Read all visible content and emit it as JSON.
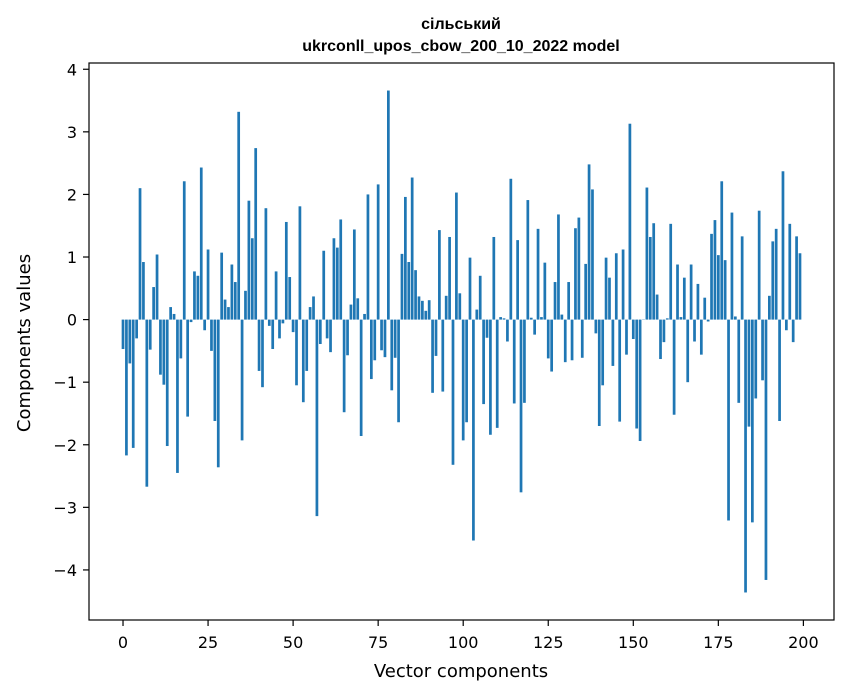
{
  "chart_data": {
    "type": "bar",
    "title": "сільський",
    "subtitle": "ukrconll_upos_cbow_200_10_2022 model",
    "xlabel": "Vector components",
    "ylabel": "Components values",
    "xlim": [
      -10,
      209
    ],
    "ylim": [
      -4.8,
      4.1
    ],
    "x_ticks": [
      0,
      25,
      50,
      75,
      100,
      125,
      150,
      175,
      200
    ],
    "y_ticks": [
      -4,
      -3,
      -2,
      -1,
      0,
      1,
      2,
      3,
      4
    ],
    "grid": false,
    "legend": "none",
    "bar_color": "#1f77b4",
    "values": [
      -0.47,
      -2.17,
      -0.7,
      -2.05,
      -0.3,
      2.1,
      0.92,
      -2.67,
      -0.48,
      0.52,
      1.04,
      -0.88,
      -1.04,
      -2.02,
      0.2,
      0.09,
      -2.45,
      -0.62,
      2.21,
      -1.55,
      -0.04,
      0.77,
      0.7,
      2.43,
      -0.17,
      1.12,
      -0.5,
      -1.62,
      -2.36,
      1.07,
      0.32,
      0.2,
      0.88,
      0.6,
      3.32,
      -1.93,
      0.46,
      1.9,
      1.3,
      2.74,
      -0.82,
      -1.08,
      1.78,
      -0.1,
      -0.47,
      0.77,
      -0.3,
      -0.06,
      1.56,
      0.68,
      -0.2,
      -1.05,
      1.81,
      -1.32,
      -0.82,
      0.2,
      0.37,
      -3.14,
      -0.39,
      1.1,
      -0.3,
      -0.52,
      1.3,
      1.15,
      1.6,
      -1.48,
      -0.57,
      0.24,
      1.44,
      0.34,
      -1.86,
      0.09,
      2.0,
      -0.95,
      -0.65,
      2.16,
      -0.49,
      -0.6,
      3.66,
      -1.13,
      -0.61,
      -1.64,
      1.05,
      1.96,
      0.92,
      2.27,
      0.79,
      0.37,
      0.3,
      0.14,
      0.31,
      -1.17,
      -0.58,
      1.43,
      -1.15,
      0.38,
      1.32,
      -2.32,
      2.03,
      0.42,
      -1.93,
      -1.64,
      0.99,
      -3.53,
      0.16,
      0.7,
      -1.35,
      -0.29,
      -1.84,
      1.32,
      -1.73,
      0.04,
      0.02,
      -0.35,
      2.25,
      -1.34,
      1.27,
      -2.76,
      -1.33,
      1.91,
      0.03,
      -0.24,
      1.45,
      0.04,
      0.91,
      -0.62,
      -0.83,
      0.6,
      1.68,
      0.08,
      -0.68,
      0.6,
      -0.65,
      1.46,
      1.63,
      -0.61,
      0.89,
      2.48,
      2.08,
      -0.22,
      -1.7,
      -1.05,
      0.99,
      0.67,
      -0.74,
      1.06,
      -1.63,
      1.12,
      -0.56,
      3.13,
      -0.31,
      -1.74,
      -1.94,
      0.0,
      2.11,
      1.32,
      1.54,
      0.4,
      -0.63,
      -0.36,
      0.02,
      1.53,
      -1.52,
      0.88,
      0.04,
      0.67,
      -1.0,
      0.88,
      -0.35,
      0.57,
      -0.56,
      0.35,
      -0.03,
      1.37,
      1.59,
      1.03,
      2.21,
      0.95,
      -3.21,
      1.71,
      0.05,
      -1.33,
      1.33,
      -4.36,
      -1.71,
      -3.24,
      -1.26,
      1.74,
      -0.97,
      -4.16,
      0.38,
      1.25,
      1.45,
      -1.62,
      2.37,
      -0.17,
      1.53,
      -0.36,
      1.33,
      1.06
    ]
  }
}
